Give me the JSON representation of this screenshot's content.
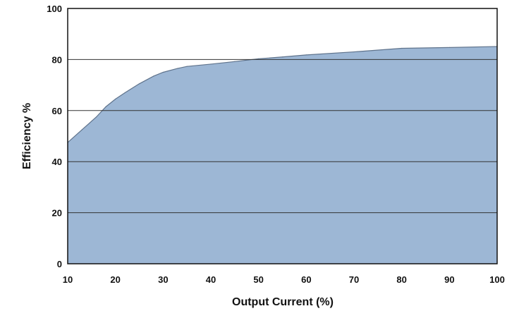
{
  "chart_data": {
    "type": "area",
    "xlabel": "Output Current (%)",
    "ylabel": "Efficiency %",
    "xlim": [
      10,
      100
    ],
    "ylim": [
      0,
      100
    ],
    "x_ticks": [
      "10",
      "20",
      "30",
      "40",
      "50",
      "60",
      "70",
      "80",
      "90",
      "100"
    ],
    "y_ticks": [
      "0",
      "20",
      "40",
      "60",
      "80",
      "100"
    ],
    "grid": "horizontal",
    "series": [
      {
        "x": [
          10,
          13,
          16,
          18,
          20,
          22,
          25,
          28,
          30,
          33,
          35,
          40,
          45,
          50,
          55,
          60,
          70,
          80,
          90,
          100
        ],
        "y": [
          47.5,
          52.5,
          57.5,
          61.5,
          64.5,
          67,
          70.5,
          73.5,
          75,
          76.5,
          77.3,
          78.2,
          79.2,
          80.3,
          81,
          81.8,
          83,
          84.4,
          84.7,
          85.1
        ],
        "color": "#9db7d5"
      }
    ]
  },
  "colors": {
    "fill": "#9db7d5",
    "line": "#5f738c",
    "grid": "#333333",
    "frame": "#111111"
  }
}
